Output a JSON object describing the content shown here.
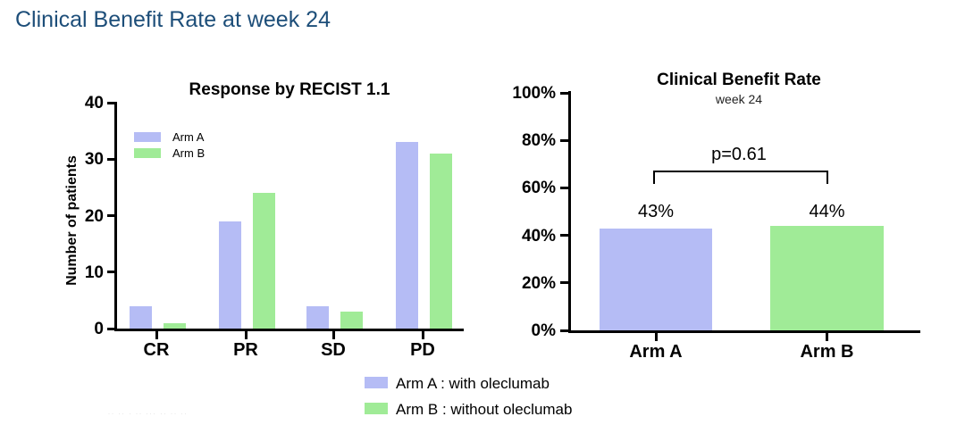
{
  "slide": {
    "title": "Clinical Benefit Rate at week 24",
    "footnote_fragment": "·· ·· · ·· ··· ·· ·· ··"
  },
  "colors": {
    "arm_a": "#b5bcf5",
    "arm_b": "#a0eb97",
    "axis": "#000000",
    "title_blue": "#1d4e79"
  },
  "chart_data": [
    {
      "type": "bar",
      "title": "Response by RECIST 1.1",
      "xlabel": "",
      "ylabel": "Number of patients",
      "categories": [
        "CR",
        "PR",
        "SD",
        "PD"
      ],
      "series": [
        {
          "name": "Arm A",
          "values": [
            4,
            19,
            4,
            33
          ]
        },
        {
          "name": "Arm B",
          "values": [
            1,
            24,
            3,
            31
          ]
        }
      ],
      "ylim": [
        0,
        40
      ],
      "yticks": [
        0,
        10,
        20,
        30,
        40
      ],
      "grid": "off",
      "legend_position": "upper left inside"
    },
    {
      "type": "bar",
      "title": "Clinical Benefit Rate",
      "subtitle": "week 24",
      "xlabel": "",
      "ylabel": "",
      "categories": [
        "Arm A",
        "Arm B"
      ],
      "values": [
        43,
        44
      ],
      "value_labels": [
        "43%",
        "44%"
      ],
      "ylim": [
        0,
        100
      ],
      "yticks": [
        0,
        20,
        40,
        60,
        80,
        100
      ],
      "ytick_labels": [
        "0%",
        "20%",
        "40%",
        "60%",
        "80%",
        "100%"
      ],
      "grid": "off",
      "annotation": {
        "text": "p=0.61",
        "kind": "significance-bracket"
      }
    }
  ],
  "bottom_legend": [
    {
      "swatch": "arm_a",
      "label": "Arm A : with oleclumab"
    },
    {
      "swatch": "arm_b",
      "label": "Arm B : without oleclumab"
    }
  ]
}
